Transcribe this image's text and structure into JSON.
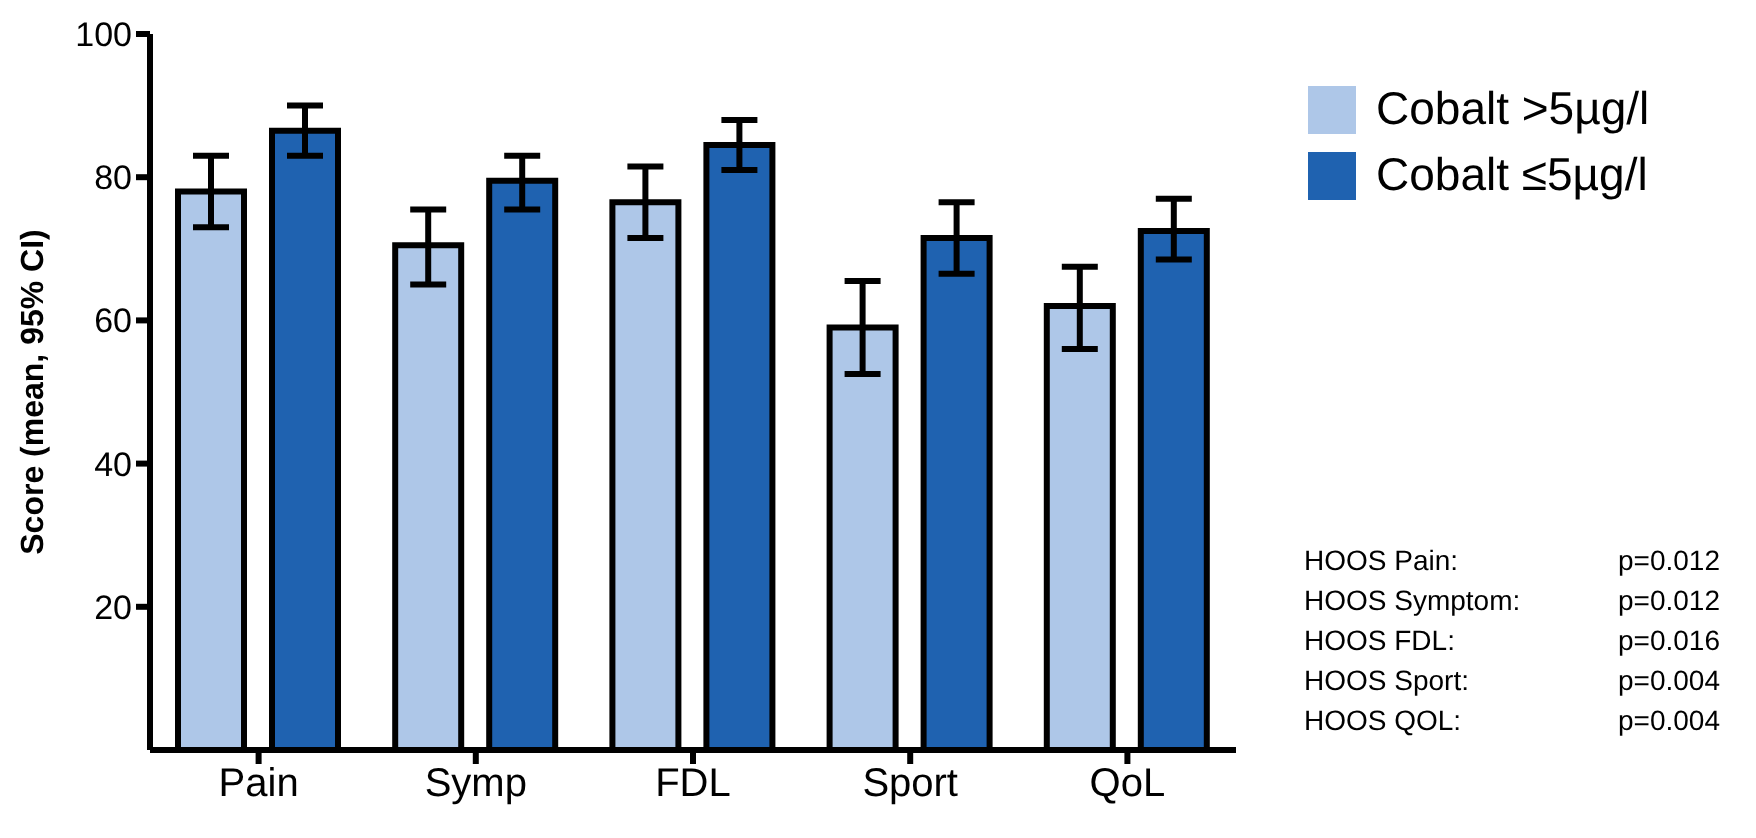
{
  "chart_data": {
    "type": "bar",
    "ylabel": "Score (mean, 95% CI)",
    "categories": [
      "Pain",
      "Symp",
      "FDL",
      "Sport",
      "QoL"
    ],
    "series": [
      {
        "name": "Cobalt >5µg/l",
        "color": "#aec7e8",
        "values": [
          78,
          70.5,
          76.5,
          59,
          62
        ],
        "errors": [
          [
            73,
            83
          ],
          [
            65,
            75.5
          ],
          [
            71.5,
            81.5
          ],
          [
            52.5,
            65.5
          ],
          [
            56,
            67.5
          ]
        ]
      },
      {
        "name": "Cobalt ≤5µg/l",
        "color": "#1f62b0",
        "values": [
          86.5,
          79.5,
          84.5,
          71.5,
          72.5
        ],
        "errors": [
          [
            83,
            90
          ],
          [
            75.5,
            83
          ],
          [
            81,
            88
          ],
          [
            66.5,
            76.5
          ],
          [
            68.5,
            77
          ]
        ]
      }
    ],
    "ylim": [
      0,
      100
    ],
    "yticks": [
      20,
      40,
      60,
      80,
      100
    ],
    "grid": false,
    "legend": "top right",
    "annotations": [
      "HOOS Pain: p=0.012",
      "HOOS Symptom: p=0.012",
      "HOOS FDL: p=0.016",
      "HOOS Sport: p=0.004",
      "HOOS QOL: p=0.004"
    ]
  }
}
